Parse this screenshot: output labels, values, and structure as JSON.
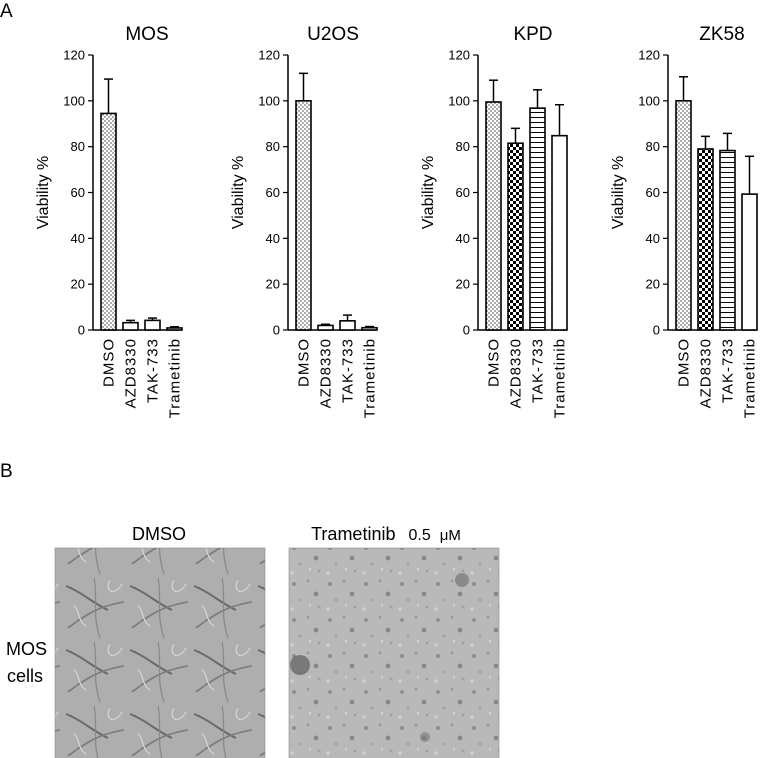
{
  "panel_a_label": "A",
  "panel_b_label": "B",
  "chart_data": [
    {
      "type": "bar",
      "title": "MOS",
      "ylabel": "Viability %",
      "ylim": [
        0,
        120
      ],
      "yticks": [
        "0",
        "20",
        "40",
        "60",
        "80",
        "100",
        "120"
      ],
      "categories": [
        "DMSO",
        "AZD8330",
        "TAK-733",
        "Trametinib"
      ],
      "values": [
        94.5,
        3.2,
        4.2,
        0.9
      ],
      "errors": [
        15,
        1,
        1,
        0.5
      ],
      "patterns": [
        "dots",
        "none",
        "none",
        "none"
      ]
    },
    {
      "type": "bar",
      "title": "U2OS",
      "ylabel": "Viability %",
      "ylim": [
        0,
        120
      ],
      "yticks": [
        "0",
        "20",
        "40",
        "60",
        "80",
        "100",
        "120"
      ],
      "categories": [
        "DMSO",
        "AZD8330",
        "TAK-733",
        "Trametinib"
      ],
      "values": [
        100,
        2,
        4,
        1
      ],
      "errors": [
        12,
        0.5,
        2.5,
        0.5
      ],
      "patterns": [
        "dots",
        "none",
        "none",
        "none"
      ]
    },
    {
      "type": "bar",
      "title": "KPD",
      "ylabel": "Viability %",
      "ylim": [
        0,
        120
      ],
      "yticks": [
        "0",
        "20",
        "40",
        "60",
        "80",
        "100",
        "120"
      ],
      "categories": [
        "DMSO",
        "AZD8330",
        "TAK-733",
        "Trametinib"
      ],
      "values": [
        99.5,
        81.5,
        96.8,
        84.8
      ],
      "errors": [
        9.5,
        6.5,
        8,
        13.5
      ],
      "patterns": [
        "dots",
        "checker",
        "hlines",
        "none"
      ]
    },
    {
      "type": "bar",
      "title": "ZK58",
      "ylabel": "Viability %",
      "ylim": [
        0,
        120
      ],
      "yticks": [
        "0",
        "20",
        "40",
        "60",
        "80",
        "100",
        "120"
      ],
      "categories": [
        "DMSO",
        "AZD8330",
        "TAK-733",
        "Trametinib"
      ],
      "values": [
        100,
        79,
        78.3,
        59.3
      ],
      "errors": [
        10.5,
        5.5,
        7.5,
        16.5
      ],
      "patterns": [
        "dots",
        "checker",
        "hlines",
        "none"
      ]
    }
  ],
  "micrographs": {
    "row_label_line1": "MOS",
    "row_label_line2": "cells",
    "left_title": "DMSO",
    "right_title_drug": "Trametinib",
    "right_title_conc": "0.5",
    "right_title_unit": "μM"
  }
}
